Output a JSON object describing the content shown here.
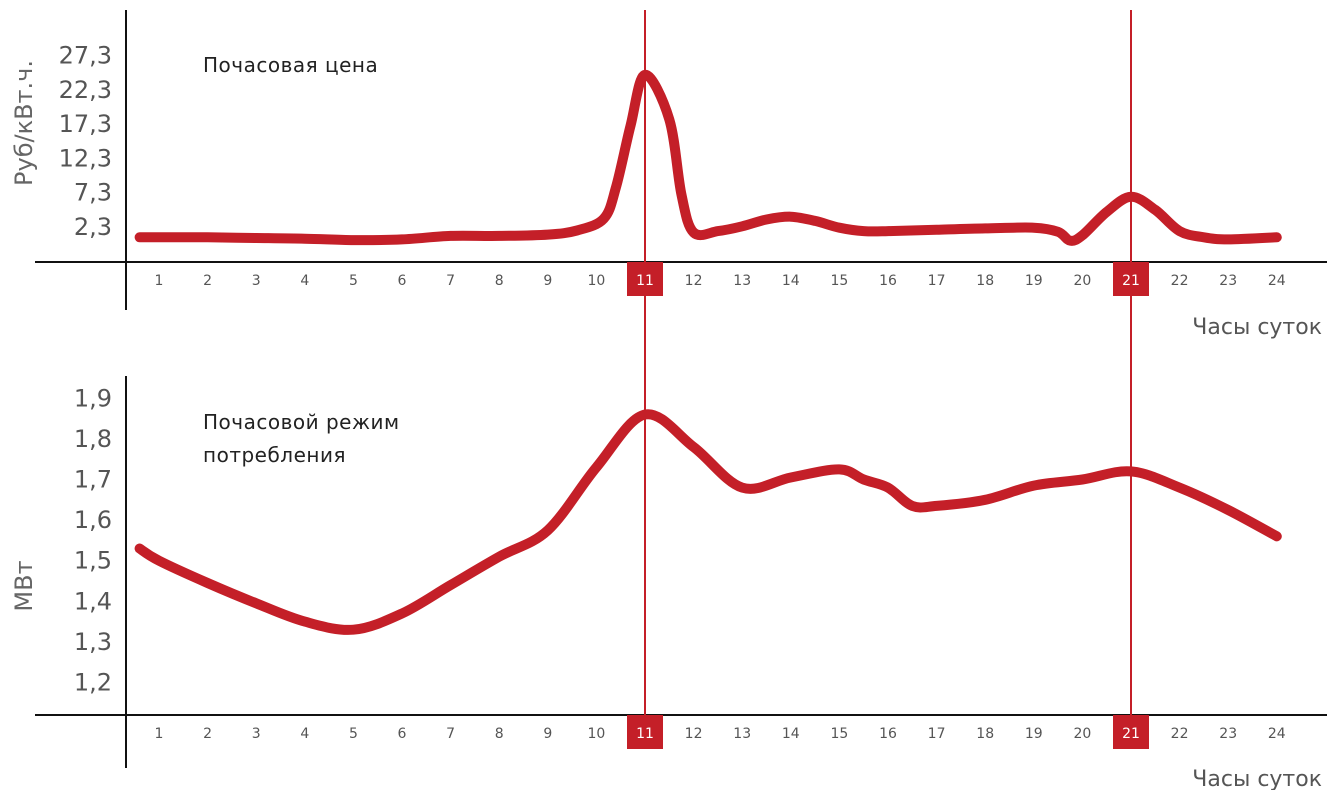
{
  "colors": {
    "line": "#c41f28",
    "highlight": "#c41f28",
    "axis": "#111111",
    "text": "#555555"
  },
  "highlight_hours": [
    "11",
    "21"
  ],
  "chart_data": [
    {
      "type": "line",
      "title": "Почасовая цена",
      "xlabel": "Часы суток",
      "ylabel": "Руб/кВт.ч.",
      "categories": [
        "1",
        "2",
        "3",
        "4",
        "5",
        "6",
        "7",
        "8",
        "9",
        "10",
        "11",
        "12",
        "13",
        "14",
        "15",
        "16",
        "17",
        "18",
        "19",
        "20",
        "21",
        "22",
        "23",
        "24"
      ],
      "yticks": [
        "27,3",
        "22,3",
        "17,3",
        "12,3",
        "7,3",
        "2,3"
      ],
      "ylim": [
        -2.8,
        30.3
      ],
      "grid": false,
      "series": [
        {
          "x": [
            0.6,
            1,
            2,
            3,
            4,
            5,
            6,
            7,
            8,
            9,
            9.6,
            10.15,
            10.4,
            10.7,
            11,
            11.5,
            11.75,
            12,
            12.5,
            13,
            13.5,
            14,
            14.5,
            15,
            15.5,
            16,
            17,
            18,
            19,
            19.5,
            19.75,
            20,
            20.5,
            21,
            21.5,
            22,
            22.5,
            23,
            24
          ],
          "values": [
            0.8,
            0.8,
            0.8,
            0.7,
            0.6,
            0.4,
            0.5,
            1.0,
            1.0,
            1.2,
            1.8,
            3.5,
            8.0,
            17.0,
            24.5,
            18.0,
            7.0,
            1.5,
            1.7,
            2.4,
            3.4,
            3.8,
            3.2,
            2.2,
            1.7,
            1.7,
            1.9,
            2.1,
            2.2,
            1.6,
            0.3,
            1.1,
            4.5,
            6.7,
            4.8,
            1.7,
            0.8,
            0.5,
            0.8
          ]
        }
      ]
    },
    {
      "type": "line",
      "title": "Почасовой режим потребления",
      "xlabel": "Часы суток",
      "ylabel": "МВт",
      "categories": [
        "1",
        "2",
        "3",
        "4",
        "5",
        "6",
        "7",
        "8",
        "9",
        "10",
        "11",
        "12",
        "13",
        "14",
        "15",
        "16",
        "17",
        "18",
        "19",
        "20",
        "21",
        "22",
        "23",
        "24"
      ],
      "yticks": [
        "1,9",
        "1,8",
        "1,7",
        "1,6",
        "1,5",
        "1,4",
        "1,3",
        "1,2"
      ],
      "ylim": [
        1.12,
        1.95
      ],
      "grid": false,
      "series": [
        {
          "x": [
            0.6,
            1,
            2,
            3,
            4,
            5,
            6,
            7,
            8,
            9,
            10,
            11,
            12,
            13,
            14,
            15,
            15.5,
            16,
            16.5,
            17,
            18,
            19,
            20,
            21,
            22,
            23,
            24
          ],
          "values": [
            1.53,
            1.5,
            1.445,
            1.395,
            1.35,
            1.33,
            1.37,
            1.44,
            1.51,
            1.575,
            1.73,
            1.86,
            1.78,
            1.68,
            1.705,
            1.725,
            1.7,
            1.68,
            1.635,
            1.635,
            1.65,
            1.685,
            1.7,
            1.72,
            1.68,
            1.625,
            1.56
          ]
        }
      ]
    }
  ],
  "titles": {
    "top": "Почасовая цена",
    "bottom_line1": "Почасовой режим",
    "bottom_line2": "потребления"
  }
}
